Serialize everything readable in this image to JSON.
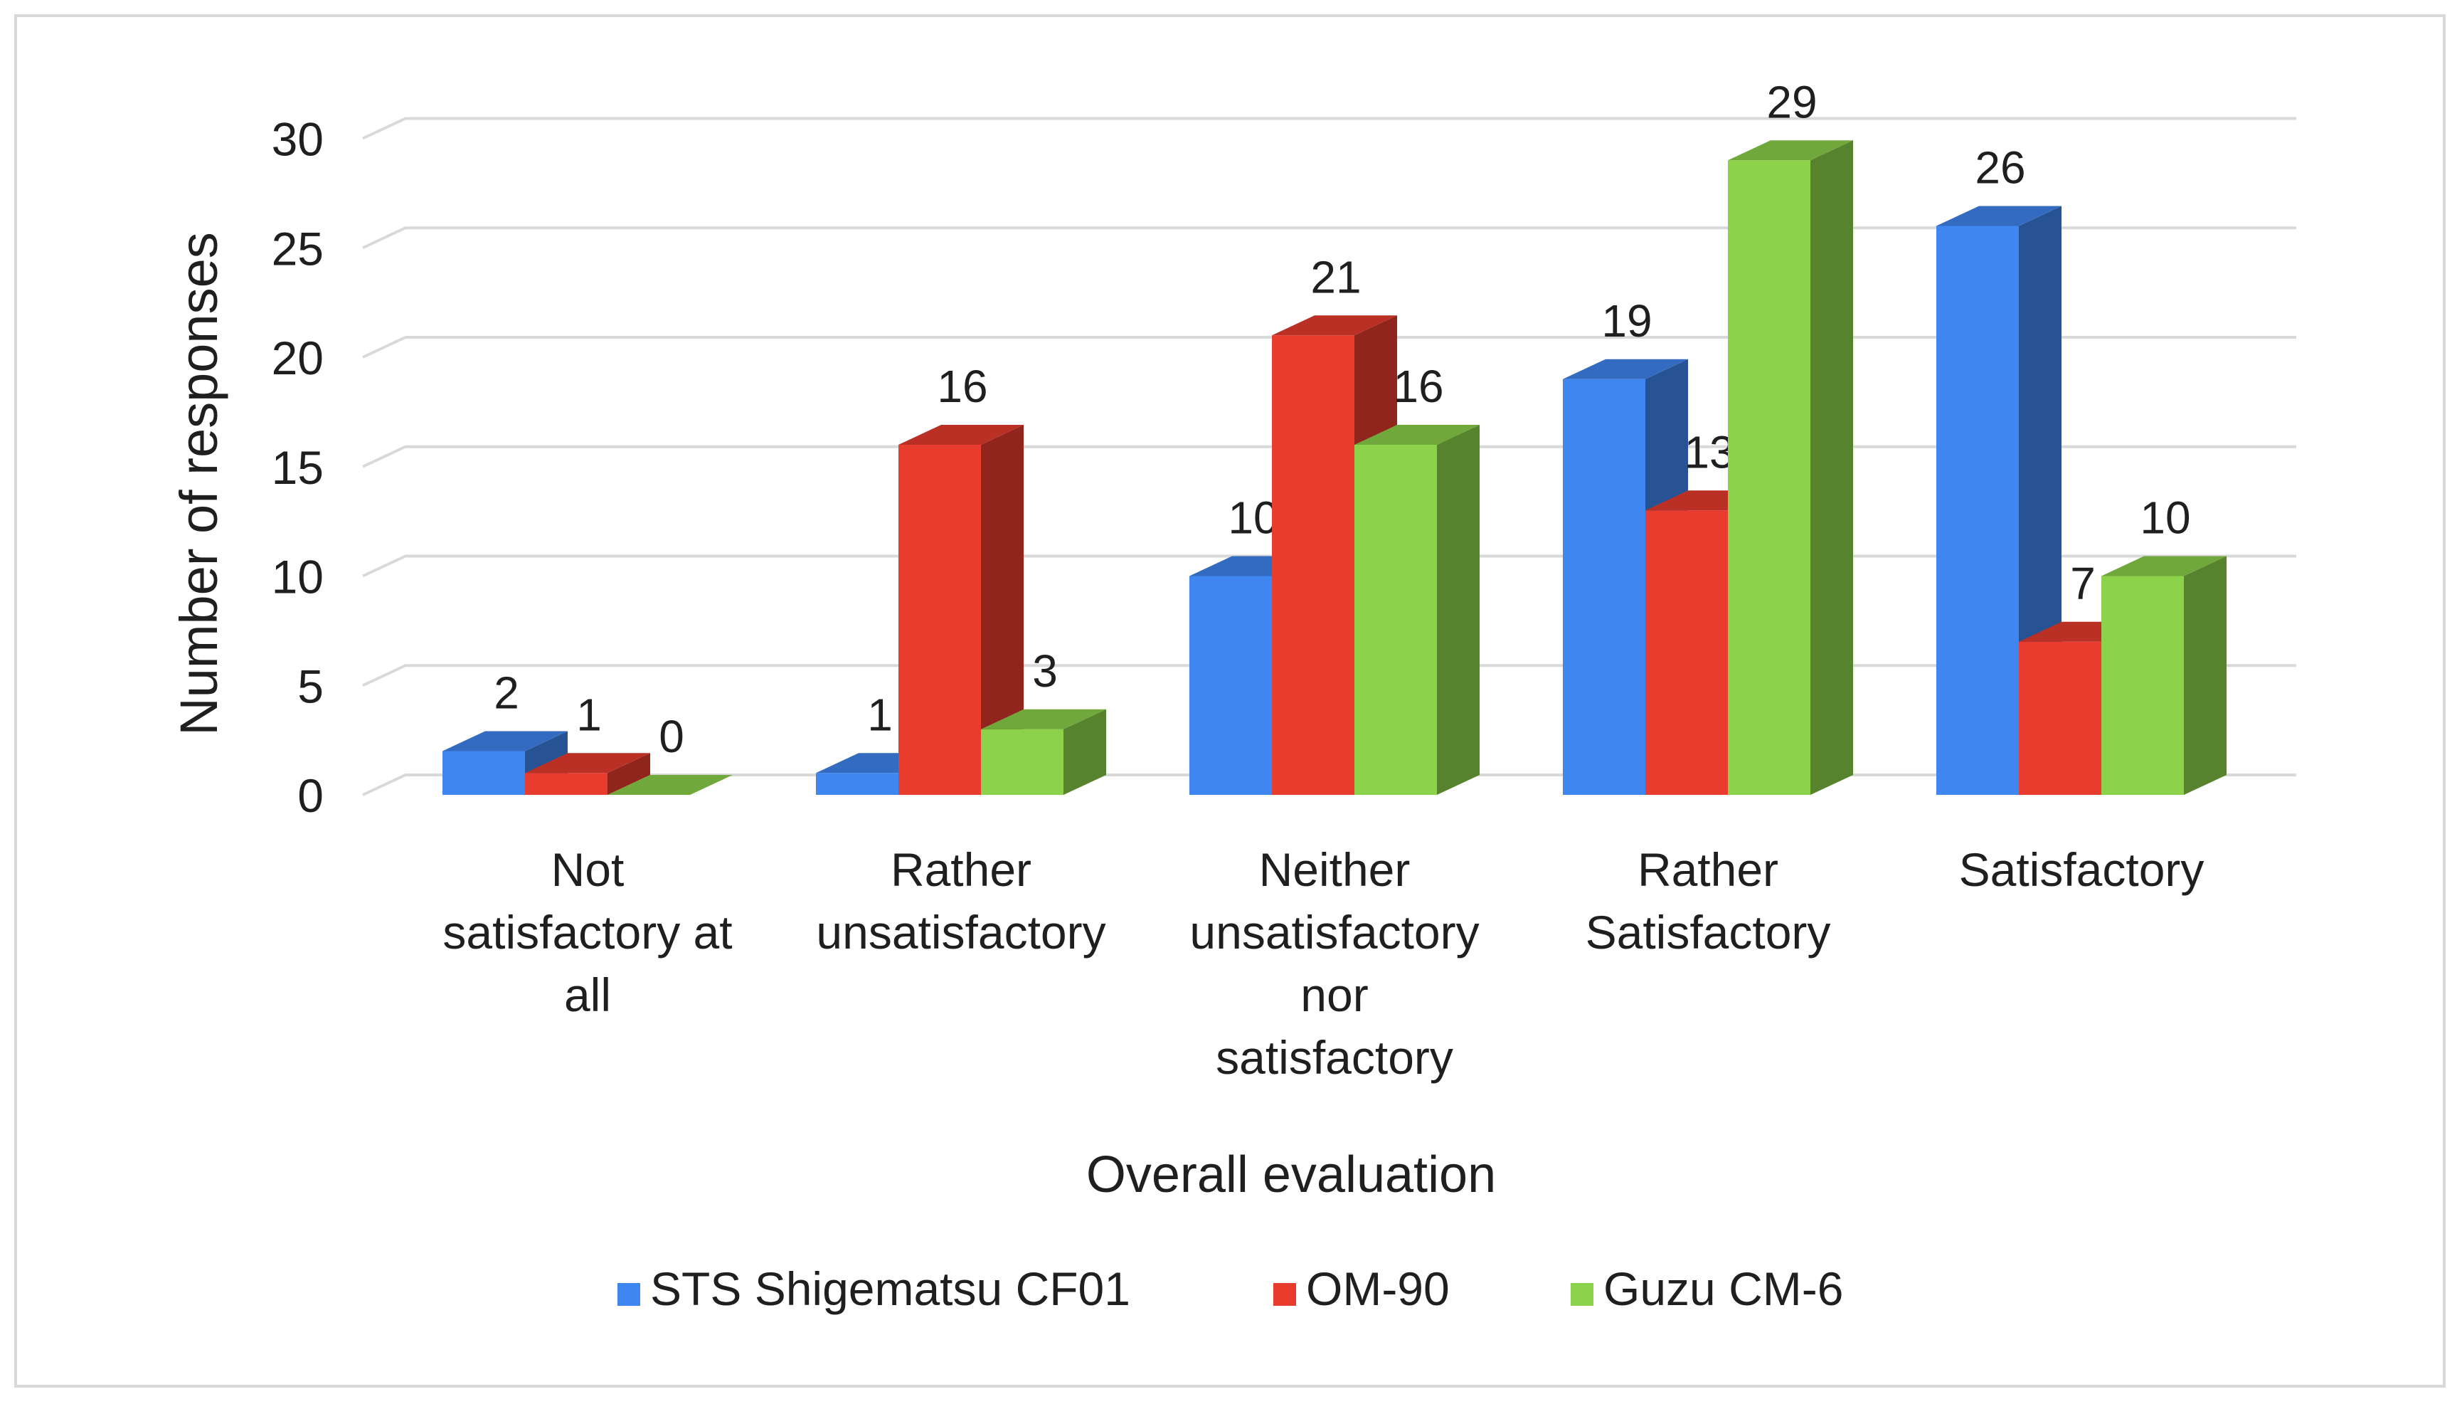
{
  "chart_data": {
    "type": "bar",
    "title": "",
    "xlabel": "Overall evaluation",
    "ylabel": "Number of responses",
    "ylim": [
      0,
      30
    ],
    "yticks": [
      0,
      5,
      10,
      15,
      20,
      25,
      30
    ],
    "grid": true,
    "legend_position": "bottom",
    "categories": [
      [
        "Not",
        "satisfactory at",
        "all"
      ],
      [
        "Rather",
        "unsatisfactory"
      ],
      [
        "Neither",
        "unsatisfactory",
        "nor",
        "satisfactory"
      ],
      [
        "Rather",
        "Satisfactory"
      ],
      [
        "Satisfactory"
      ]
    ],
    "series": [
      {
        "name": "STS Shigematsu CF01",
        "color": "#3f86f0",
        "values": [
          2,
          1,
          10,
          19,
          26
        ]
      },
      {
        "name": "OM-90",
        "color": "#e83c2e",
        "values": [
          1,
          16,
          21,
          13,
          7
        ]
      },
      {
        "name": "Guzu CM-6",
        "color": "#8cd24a",
        "values": [
          0,
          3,
          16,
          29,
          10
        ]
      }
    ]
  }
}
